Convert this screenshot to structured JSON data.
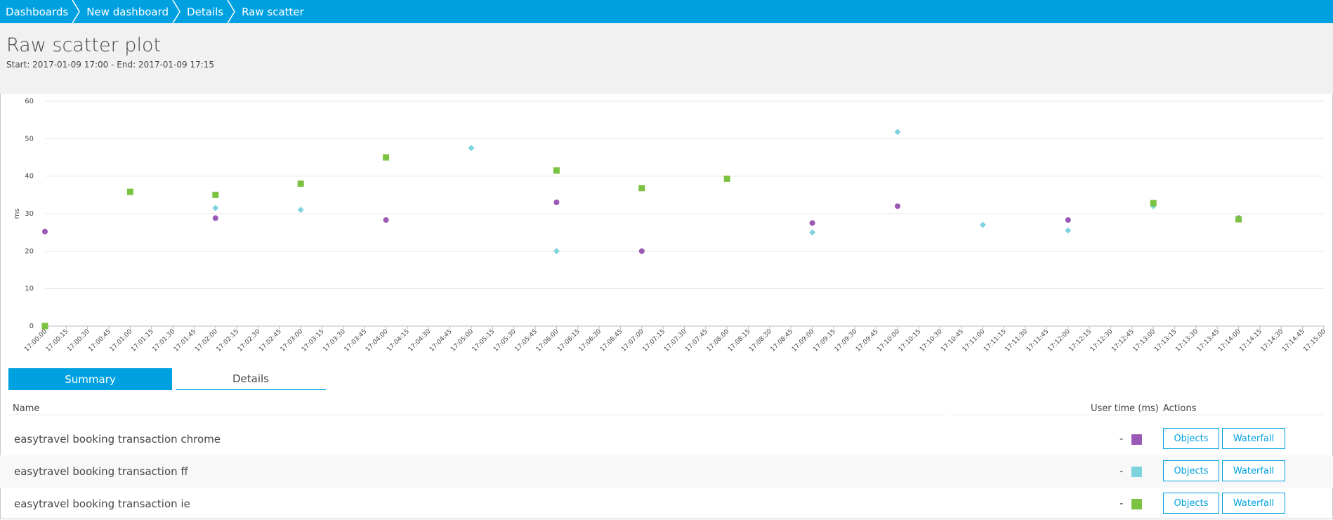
{
  "breadcrumb": [
    "Dashboards",
    "New dashboard",
    "Details",
    "Raw scatter"
  ],
  "header": {
    "title": "Raw scatter plot",
    "subtitle": "Start: 2017-01-09 17:00 - End: 2017-01-09 17:15"
  },
  "colors": {
    "chrome": "#9b59b6",
    "ff": "#7fd3de",
    "ie": "#7bc242",
    "accent": "#00a1e0"
  },
  "chart_data": {
    "type": "scatter",
    "ylabel": "ms",
    "ylim": [
      0,
      60
    ],
    "yticks": [
      0,
      10,
      20,
      30,
      40,
      50,
      60
    ],
    "xlabels": [
      "17:00:00",
      "17:00:15",
      "17:00:30",
      "17:00:45",
      "17:01:00",
      "17:01:15",
      "17:01:30",
      "17:01:45",
      "17:02:00",
      "17:02:15",
      "17:02:30",
      "17:02:45",
      "17:03:00",
      "17:03:15",
      "17:03:30",
      "17:03:45",
      "17:04:00",
      "17:04:15",
      "17:04:30",
      "17:04:45",
      "17:05:00",
      "17:05:15",
      "17:05:30",
      "17:05:45",
      "17:06:00",
      "17:06:15",
      "17:06:30",
      "17:06:45",
      "17:07:00",
      "17:07:15",
      "17:07:30",
      "17:07:45",
      "17:08:00",
      "17:08:15",
      "17:08:30",
      "17:08:45",
      "17:09:00",
      "17:09:15",
      "17:09:30",
      "17:09:45",
      "17:10:00",
      "17:10:15",
      "17:10:30",
      "17:10:45",
      "17:11:00",
      "17:11:15",
      "17:11:30",
      "17:11:45",
      "17:12:00",
      "17:12:15",
      "17:12:30",
      "17:12:45",
      "17:13:00",
      "17:13:15",
      "17:13:30",
      "17:13:45",
      "17:14:00",
      "17:14:15",
      "17:14:30",
      "17:14:45",
      "17:15:00"
    ],
    "grid": true,
    "series": [
      {
        "name": "easytravel booking transaction chrome",
        "marker": "circle",
        "color": "#9b59b6",
        "points": [
          [
            "17:00:00",
            25.2
          ],
          [
            "17:02:00",
            28.8
          ],
          [
            "17:04:00",
            28.3
          ],
          [
            "17:06:00",
            33.0
          ],
          [
            "17:07:00",
            20.0
          ],
          [
            "17:09:00",
            27.5
          ],
          [
            "17:10:00",
            32.0
          ],
          [
            "17:12:00",
            28.3
          ],
          [
            "17:14:00",
            28.8
          ]
        ]
      },
      {
        "name": "easytravel booking transaction ff",
        "marker": "diamond",
        "color": "#7fd3de",
        "points": [
          [
            "17:02:00",
            31.5
          ],
          [
            "17:03:00",
            31.0
          ],
          [
            "17:05:00",
            47.5
          ],
          [
            "17:06:00",
            20.0
          ],
          [
            "17:09:00",
            25.0
          ],
          [
            "17:10:00",
            51.8
          ],
          [
            "17:11:00",
            27.0
          ],
          [
            "17:12:00",
            25.5
          ],
          [
            "17:13:00",
            32.0
          ]
        ]
      },
      {
        "name": "easytravel booking transaction ie",
        "marker": "square",
        "color": "#7bc242",
        "points": [
          [
            "17:00:00",
            0.0
          ],
          [
            "17:01:00",
            35.8
          ],
          [
            "17:02:00",
            35.0
          ],
          [
            "17:03:00",
            38.0
          ],
          [
            "17:04:00",
            45.0
          ],
          [
            "17:06:00",
            41.5
          ],
          [
            "17:07:00",
            36.8
          ],
          [
            "17:08:00",
            39.3
          ],
          [
            "17:13:00",
            32.8
          ],
          [
            "17:14:00",
            28.5
          ]
        ]
      }
    ]
  },
  "tabs": [
    "Summary",
    "Details"
  ],
  "table": {
    "headers": {
      "name": "Name",
      "user_time": "User time (ms)",
      "actions": "Actions"
    },
    "rows": [
      {
        "name": "easytravel booking transaction chrome",
        "value": "-",
        "color": "#9b59b6"
      },
      {
        "name": "easytravel booking transaction ff",
        "value": "-",
        "color": "#7fd3de"
      },
      {
        "name": "easytravel booking transaction ie",
        "value": "-",
        "color": "#7bc242"
      }
    ],
    "objects_label": "Objects",
    "waterfall_label": "Waterfall"
  }
}
